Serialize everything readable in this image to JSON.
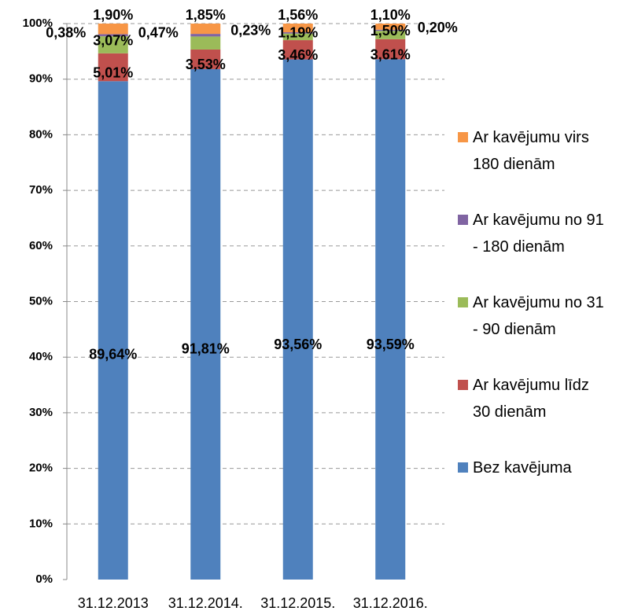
{
  "chart_data": {
    "type": "stacked_bar",
    "categories": [
      "31.12.2013",
      "31.12.2014.",
      "31.12.2015.",
      "31.12.2016."
    ],
    "series": [
      {
        "name": "Bez kavējuma",
        "color": "#4f81bd",
        "values": [
          89.64,
          91.81,
          93.56,
          93.59
        ],
        "value_labels": [
          "89,64%",
          "91,81%",
          "93,56%",
          "93,59%"
        ]
      },
      {
        "name": "Ar kavējumu līdz 30 dienām",
        "color": "#c0504d",
        "values": [
          5.01,
          3.53,
          3.46,
          3.61
        ],
        "value_labels": [
          "5,01%",
          "3,53%",
          "3,46%",
          "3,61%"
        ]
      },
      {
        "name": "Ar kavējumu no 31 - 90 dienām",
        "color": "#9bbb59",
        "values": [
          3.07,
          2.34,
          1.19,
          1.5
        ],
        "value_labels": [
          "3,07%",
          null,
          "1,19%",
          "1,50%"
        ]
      },
      {
        "name": "Ar kavējumu no 91 - 180 dienām",
        "color": "#8064a2",
        "values": [
          0.38,
          0.47,
          0.23,
          0.2
        ],
        "value_labels": [
          "0,38%",
          "0,47%",
          "0,23%",
          "0,20%"
        ]
      },
      {
        "name": "Ar kavējumu virs 180 dienām",
        "color": "#f79646",
        "values": [
          1.9,
          1.85,
          1.56,
          1.1
        ],
        "value_labels": [
          "1,90%",
          "1,85%",
          "1,56%",
          "1,10%"
        ]
      }
    ],
    "ylim": [
      0,
      100
    ],
    "yticks": [
      {
        "value": 0,
        "label": "0%"
      },
      {
        "value": 10,
        "label": "10%"
      },
      {
        "value": 20,
        "label": "20%"
      },
      {
        "value": 30,
        "label": "30%"
      },
      {
        "value": 40,
        "label": "40%"
      },
      {
        "value": 50,
        "label": "50%"
      },
      {
        "value": 60,
        "label": "60%"
      },
      {
        "value": 70,
        "label": "70%"
      },
      {
        "value": 80,
        "label": "80%"
      },
      {
        "value": 90,
        "label": "90%"
      },
      {
        "value": 100,
        "label": "100%"
      }
    ],
    "grid": true
  }
}
